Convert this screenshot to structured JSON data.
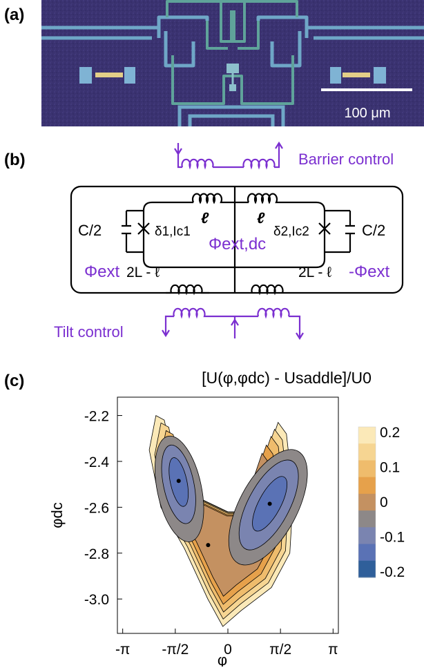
{
  "panels": {
    "a": "(a)",
    "b": "(b)",
    "c": "(c)"
  },
  "micrograph": {
    "scalebar": "100 μm"
  },
  "circuit": {
    "barrier_control": "Barrier control",
    "tilt_control": "Tilt control",
    "c_left": "C/2",
    "c_right": "C/2",
    "ell_left": "ℓ",
    "ell_right": "ℓ",
    "junction_left": "δ1,Ic1",
    "junction_right": "δ2,Ic2",
    "phi_dc": "Φext,dc",
    "phi_left": "Φext",
    "phi_right": "-Φext",
    "ind_left": "2L - ℓ",
    "ind_right": "2L - ℓ",
    "colors": {
      "control": "#7b2fd0",
      "circuit": "#000000"
    }
  },
  "chart_data": {
    "type": "contour",
    "title": "[U(φ,φdc) - Usaddle]/U0",
    "xlabel": "φ",
    "ylabel": "φdc",
    "x_ticks": [
      "-π",
      "-π/2",
      "0",
      "π/2",
      "π"
    ],
    "y_ticks": [
      "-2.2",
      "-2.4",
      "-2.6",
      "-2.8",
      "-3.0"
    ],
    "ylim": [
      -3.15,
      -2.12
    ],
    "xlim": [
      -3.3,
      3.3
    ],
    "colorbar": {
      "ticks": [
        "0.2",
        "0.1",
        "0",
        "-0.1",
        "-0.2"
      ],
      "levels": [
        0.2,
        0.15,
        0.1,
        0.05,
        0,
        -0.05,
        -0.1,
        -0.15,
        -0.2
      ],
      "colors": [
        "#fbe9b8",
        "#f6d592",
        "#efbc6c",
        "#e6a14b",
        "#c49161",
        "#8d8888",
        "#7a84b0",
        "#5a72b5",
        "#2f5f9a"
      ]
    },
    "points": [
      {
        "name": "left-minimum",
        "x": -1.47,
        "y": -2.485
      },
      {
        "name": "right-minimum",
        "x": 1.25,
        "y": -2.585
      },
      {
        "name": "saddle",
        "x": -0.59,
        "y": -2.765
      }
    ]
  }
}
